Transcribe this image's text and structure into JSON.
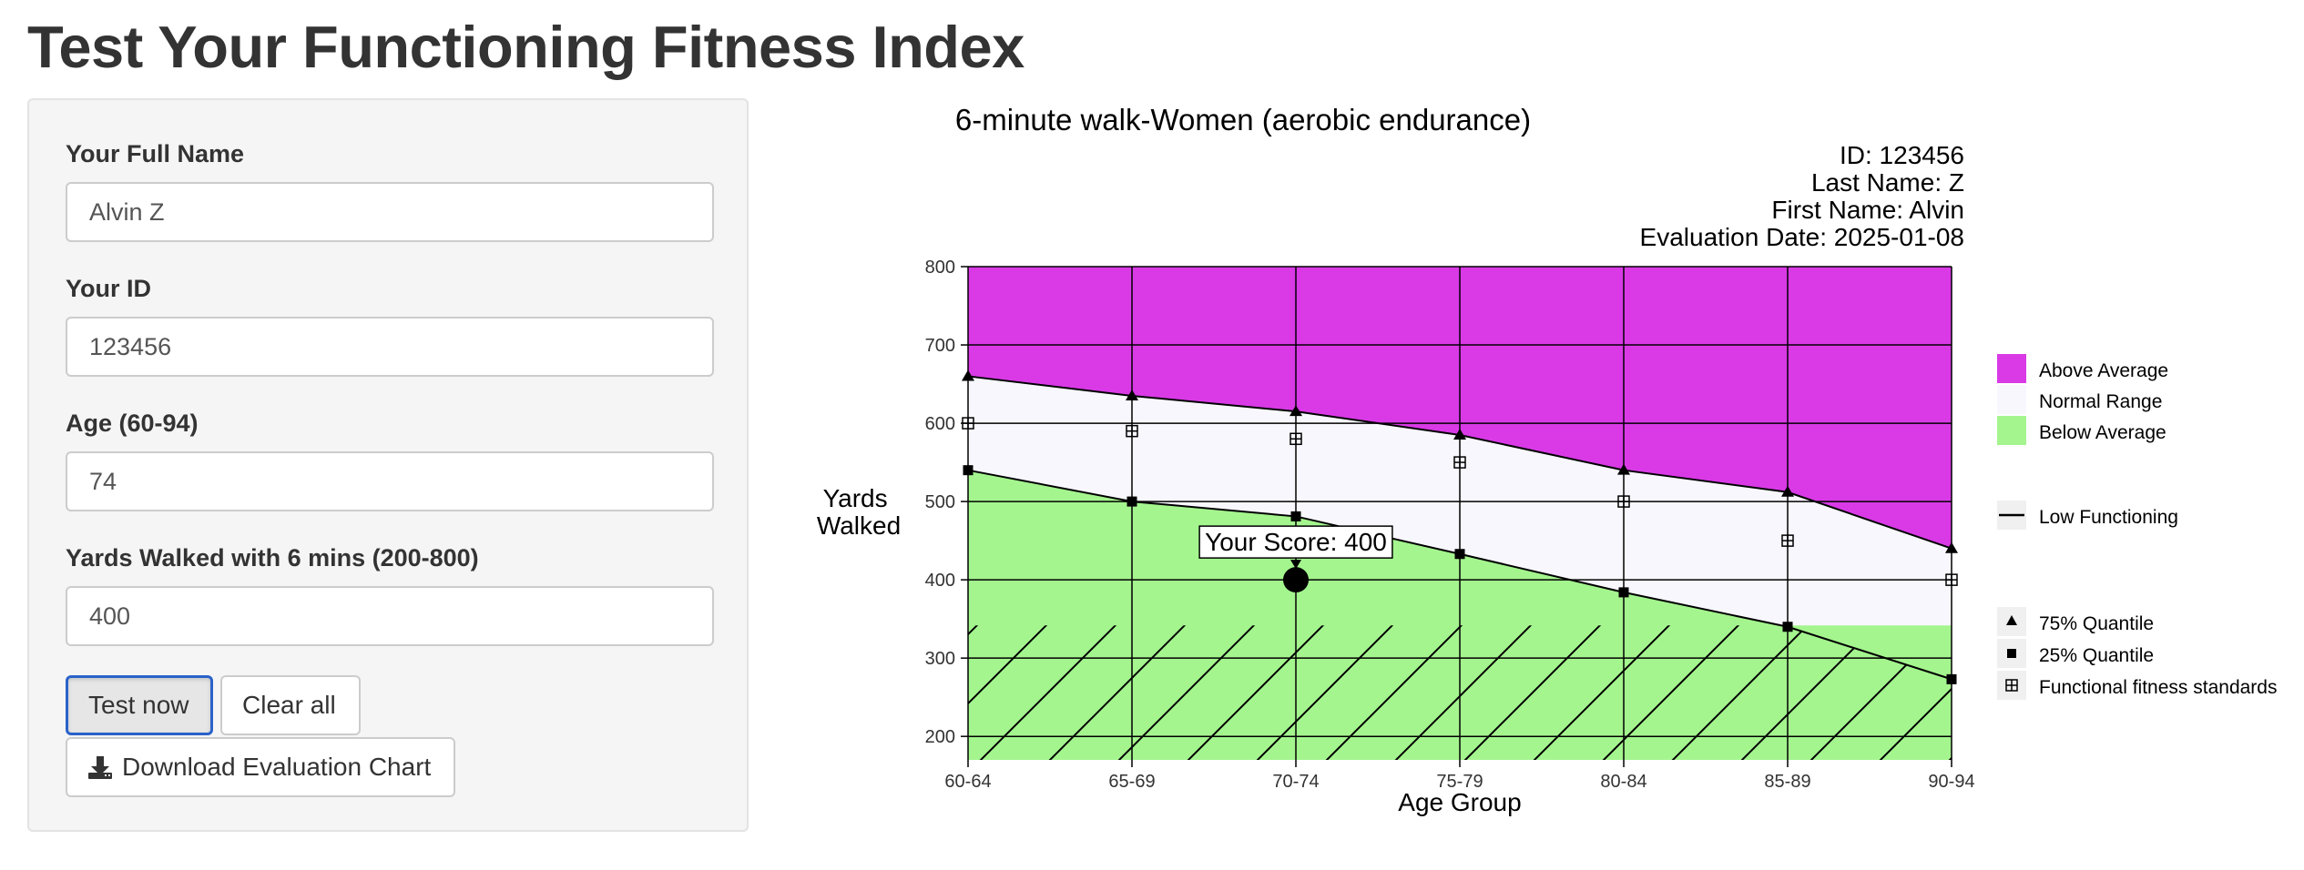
{
  "page": {
    "title": "Test Your Functioning Fitness Index"
  },
  "form": {
    "name_label": "Your Full Name",
    "name_value": "Alvin Z",
    "id_label": "Your ID",
    "id_value": "123456",
    "age_label": "Age (60-94)",
    "age_value": "74",
    "yards_label": "Yards Walked with 6 mins (200-800)",
    "yards_value": "400",
    "test_button": "Test now",
    "clear_button": "Clear all",
    "download_button": "Download Evaluation Chart",
    "download_icon": "download-icon"
  },
  "info": {
    "id_line": "ID: 123456",
    "last_name_line": "Last Name: Z",
    "first_name_line": "First Name: Alvin",
    "date_line": "Evaluation Date: 2025-01-08"
  },
  "legend": {
    "above": "Above Average",
    "normal": "Normal Range",
    "below": "Below Average",
    "low": "Low Functioning",
    "q75": "75% Quantile",
    "q25": "25% Quantile",
    "standards": "Functional fitness standards"
  },
  "colors": {
    "above": "#d93ae6",
    "normal": "#f7f7fd",
    "below": "#a4f58e",
    "button_focus": "#2a62c9"
  },
  "chart_data": {
    "type": "area",
    "title": "6-minute walk-Women (aerobic endurance)",
    "xlabel": "Age Group",
    "ylabel": "Yards Walked",
    "categories": [
      "60-64",
      "65-69",
      "70-74",
      "75-79",
      "80-84",
      "85-89",
      "90-94"
    ],
    "ylim": [
      170,
      800
    ],
    "yticks": [
      200,
      300,
      400,
      500,
      600,
      700,
      800
    ],
    "grid": true,
    "legend_position": "right",
    "series": [
      {
        "name": "75% Quantile",
        "values": [
          660,
          635,
          615,
          585,
          540,
          512,
          440
        ]
      },
      {
        "name": "25% Quantile",
        "values": [
          540,
          500,
          481,
          433,
          384,
          340,
          273
        ]
      },
      {
        "name": "Functional fitness standards",
        "values": [
          600,
          590,
          580,
          550,
          500,
          450,
          400
        ]
      }
    ],
    "low_functioning": [
      {
        "x": "60-64",
        "y": 200
      },
      {
        "x": "90-94",
        "y": 200
      }
    ],
    "score": {
      "x": "70-74",
      "y": 400,
      "label": "Your Score: 400"
    }
  }
}
